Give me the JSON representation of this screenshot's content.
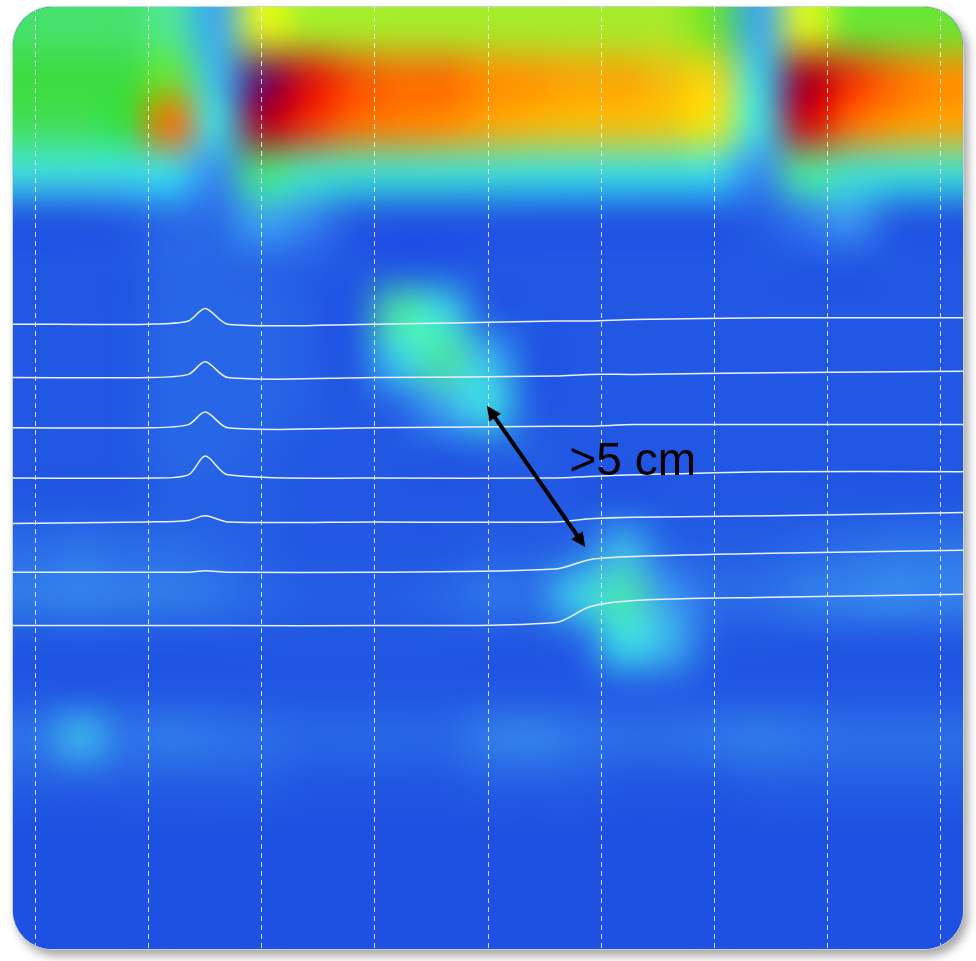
{
  "chart_data": {
    "type": "heatmap",
    "annotation": ">5 cm",
    "xlim": [
      -0.2,
      8.2
    ],
    "xticks": [
      0,
      1,
      2,
      3,
      4,
      5,
      6,
      7,
      8
    ],
    "ylim": [
      0,
      30
    ],
    "grid": true,
    "tick_labels": false,
    "zlim": [
      0,
      150
    ],
    "cell_x": [
      0,
      0.4,
      0.8,
      1.2,
      1.6,
      2.0,
      2.4,
      2.8,
      3.2,
      3.6,
      4.0,
      4.4,
      4.8,
      5.2,
      5.6,
      6.0,
      6.4,
      6.8,
      7.2,
      7.6,
      8.0
    ],
    "cell_y": [
      0.75,
      2.25,
      3.75,
      5.25,
      6.75,
      8.25,
      9.75,
      11.25,
      12.75,
      14.25,
      15.75,
      17.25,
      18.75,
      20.25,
      21.75,
      23.25,
      24.75,
      26.25,
      27.75,
      29.25
    ],
    "cells": [
      [
        50,
        50,
        50,
        45,
        22,
        70,
        65,
        65,
        65,
        65,
        65,
        65,
        65,
        65,
        65,
        60,
        22,
        70,
        60,
        60,
        60
      ],
      [
        55,
        55,
        55,
        60,
        25,
        145,
        115,
        100,
        95,
        95,
        90,
        88,
        85,
        85,
        80,
        75,
        28,
        135,
        105,
        95,
        90
      ],
      [
        52,
        52,
        55,
        95,
        30,
        130,
        105,
        95,
        92,
        90,
        85,
        82,
        80,
        80,
        78,
        72,
        30,
        120,
        95,
        88,
        85
      ],
      [
        32,
        32,
        30,
        30,
        18,
        48,
        38,
        36,
        35,
        35,
        34,
        33,
        32,
        32,
        32,
        30,
        18,
        45,
        36,
        34,
        34
      ],
      [
        11,
        11,
        12,
        14,
        14,
        22,
        18,
        12,
        11,
        11,
        11,
        11,
        11,
        11,
        11,
        11,
        12,
        16,
        20,
        12,
        11
      ],
      [
        11,
        11,
        11,
        13,
        13,
        13,
        12,
        11,
        11,
        11,
        11,
        11,
        11,
        11,
        11,
        11,
        11,
        11,
        11,
        11,
        11
      ],
      [
        11,
        11,
        11,
        13,
        13,
        13,
        12,
        11,
        42,
        32,
        12,
        11,
        11,
        11,
        11,
        11,
        11,
        11,
        11,
        11,
        11
      ],
      [
        11,
        11,
        11,
        13,
        13,
        13,
        12,
        11,
        28,
        42,
        25,
        11,
        11,
        11,
        11,
        11,
        11,
        11,
        11,
        11,
        11
      ],
      [
        11,
        11,
        11,
        13,
        13,
        13,
        12,
        11,
        13,
        22,
        30,
        12,
        11,
        11,
        11,
        11,
        11,
        11,
        11,
        11,
        11
      ],
      [
        11,
        11,
        11,
        13,
        13,
        12,
        11,
        11,
        11,
        11,
        12,
        12,
        11,
        11,
        11,
        11,
        11,
        11,
        11,
        11,
        11
      ],
      [
        11,
        11,
        11,
        12,
        12,
        12,
        11,
        11,
        11,
        11,
        11,
        11,
        11,
        11,
        11,
        11,
        11,
        11,
        11,
        11,
        11
      ],
      [
        14,
        15,
        14,
        14,
        13,
        12,
        11,
        11,
        11,
        11,
        12,
        12,
        14,
        24,
        13,
        12,
        12,
        13,
        14,
        15,
        15
      ],
      [
        16,
        17,
        16,
        16,
        15,
        13,
        12,
        12,
        12,
        13,
        15,
        15,
        28,
        40,
        20,
        14,
        14,
        16,
        17,
        18,
        17
      ],
      [
        11,
        11,
        11,
        11,
        11,
        11,
        11,
        11,
        11,
        11,
        11,
        11,
        13,
        30,
        24,
        12,
        11,
        11,
        11,
        11,
        11
      ],
      [
        11,
        11,
        11,
        11,
        11,
        11,
        11,
        11,
        11,
        11,
        11,
        11,
        11,
        12,
        12,
        11,
        11,
        11,
        11,
        11,
        11
      ],
      [
        15,
        24,
        15,
        16,
        15,
        14,
        13,
        13,
        13,
        13,
        16,
        17,
        15,
        14,
        14,
        15,
        16,
        15,
        14,
        14,
        14
      ],
      [
        12,
        12,
        12,
        12,
        12,
        12,
        11,
        11,
        11,
        11,
        12,
        12,
        12,
        11,
        11,
        11,
        12,
        12,
        12,
        12,
        12
      ],
      [
        10,
        10,
        10,
        10,
        10,
        10,
        10,
        10,
        10,
        10,
        10,
        10,
        10,
        10,
        10,
        10,
        10,
        10,
        10,
        10,
        10
      ],
      [
        10,
        10,
        10,
        10,
        10,
        10,
        10,
        10,
        10,
        10,
        10,
        10,
        10,
        10,
        10,
        10,
        10,
        10,
        10,
        10,
        10
      ],
      [
        10,
        10,
        10,
        10,
        10,
        10,
        10,
        10,
        10,
        10,
        10,
        10,
        10,
        10,
        10,
        10,
        10,
        10,
        10,
        10,
        10
      ]
    ],
    "x": [
      -0.2,
      1.0,
      1.35,
      1.5,
      1.7,
      3.0,
      4.6,
      4.9,
      5.3,
      6.5,
      8.2
    ],
    "series": [
      {
        "color": "#e8f0ff",
        "values": [
          10.1,
          10.1,
          10.0,
          9.6,
          10.1,
          10.1,
          10.0,
          10.0,
          9.95,
          9.9,
          9.9
        ]
      },
      {
        "color": "#e8f0ff",
        "values": [
          11.8,
          11.8,
          11.7,
          11.3,
          11.8,
          11.8,
          11.75,
          11.7,
          11.7,
          11.65,
          11.6
        ]
      },
      {
        "color": "#e8f0ff",
        "values": [
          13.4,
          13.4,
          13.3,
          12.9,
          13.4,
          13.4,
          13.35,
          13.35,
          13.3,
          13.3,
          13.3
        ]
      },
      {
        "color": "#e8f0ff",
        "values": [
          15.0,
          15.0,
          14.9,
          14.3,
          14.9,
          15.0,
          15.0,
          14.95,
          14.9,
          14.8,
          14.8
        ]
      },
      {
        "color": "#e8f0ff",
        "values": [
          16.45,
          16.4,
          16.35,
          16.2,
          16.4,
          16.4,
          16.4,
          16.3,
          16.25,
          16.2,
          16.1
        ]
      },
      {
        "color": "#e8f0ff",
        "values": [
          18.0,
          18.0,
          18.0,
          17.95,
          18.0,
          18.0,
          17.9,
          17.6,
          17.5,
          17.4,
          17.3
        ]
      },
      {
        "color": "#e8f0ff",
        "values": [
          19.7,
          19.7,
          19.7,
          19.7,
          19.7,
          19.7,
          19.6,
          19.1,
          18.9,
          18.8,
          18.7
        ]
      }
    ]
  }
}
